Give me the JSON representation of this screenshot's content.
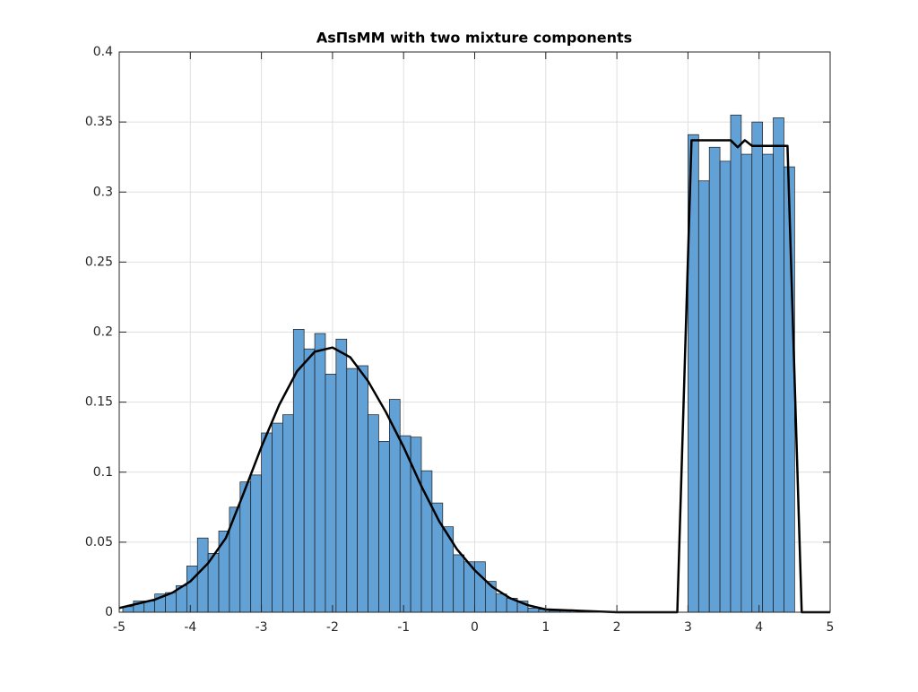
{
  "chart_data": {
    "type": "histogram",
    "title": "AsΠsMM with two mixture components",
    "bins": [
      -4.95,
      -4.8,
      -4.65,
      -4.5,
      -4.35,
      -4.2,
      -4.05,
      -3.9,
      -3.75,
      -3.6,
      -3.45,
      -3.3,
      -3.15,
      -3,
      -2.85,
      -2.7,
      -2.55,
      -2.4,
      -2.25,
      -2.1,
      -1.95,
      -1.8,
      -1.65,
      -1.5,
      -1.35,
      -1.2,
      -1.05,
      -0.9,
      -0.75,
      -0.6,
      -0.45,
      -0.3,
      -0.15,
      0,
      0.15,
      0.3,
      0.45,
      0.6,
      0.75,
      0.9,
      1.05,
      1.2,
      1.35,
      1.5,
      1.65,
      1.8,
      1.95,
      2.1,
      2.25,
      2.4,
      2.55,
      2.7,
      2.85,
      3,
      3.15,
      3.3,
      3.45,
      3.6,
      3.75,
      3.9,
      4.05,
      4.2,
      4.35,
      4.5
    ],
    "values": [
      0.004,
      0.008,
      0.008,
      0.013,
      0.014,
      0.019,
      0.033,
      0.053,
      0.042,
      0.058,
      0.075,
      0.093,
      0.098,
      0.128,
      0.135,
      0.141,
      0.202,
      0.188,
      0.199,
      0.17,
      0.195,
      0.174,
      0.176,
      0.141,
      0.122,
      0.152,
      0.126,
      0.125,
      0.101,
      0.078,
      0.061,
      0.041,
      0.036,
      0.036,
      0.022,
      0.013,
      0.01,
      0.008,
      0.003,
      0.002,
      0.001,
      0.001,
      0,
      0,
      0,
      0,
      0,
      0,
      0,
      0,
      0,
      0,
      0,
      0.341,
      0.308,
      0.332,
      0.322,
      0.355,
      0.327,
      0.35,
      0.327,
      0.353,
      0.318
    ],
    "color": "#62a1d6",
    "xlim": [
      -5,
      5
    ],
    "ylim": [
      0,
      0.4
    ],
    "xticks": [
      -5,
      -4,
      -3,
      -2,
      -1,
      0,
      1,
      2,
      3,
      4,
      5
    ],
    "yticks": [
      0,
      0.05,
      0.1,
      0.15,
      0.2,
      0.25,
      0.3,
      0.35,
      0.4
    ],
    "grid": true,
    "overlay": {
      "type": "line",
      "color": "#000000",
      "x": [
        -5,
        -4.75,
        -4.5,
        -4.25,
        -4,
        -3.75,
        -3.5,
        -3.25,
        -3,
        -2.75,
        -2.5,
        -2.25,
        -2,
        -1.75,
        -1.5,
        -1.25,
        -1,
        -0.75,
        -0.5,
        -0.25,
        0,
        0.25,
        0.5,
        0.75,
        1,
        1.5,
        2,
        2.5,
        2.85,
        3.05,
        3.6,
        3.7,
        3.8,
        3.9,
        4.4,
        4.6,
        5
      ],
      "values": [
        0.003,
        0.006,
        0.009,
        0.014,
        0.022,
        0.035,
        0.053,
        0.085,
        0.118,
        0.148,
        0.172,
        0.186,
        0.189,
        0.182,
        0.165,
        0.143,
        0.118,
        0.09,
        0.065,
        0.045,
        0.03,
        0.018,
        0.01,
        0.005,
        0.002,
        0.001,
        0,
        0,
        0,
        0.337,
        0.337,
        0.332,
        0.337,
        0.333,
        0.333,
        0,
        0
      ]
    }
  }
}
